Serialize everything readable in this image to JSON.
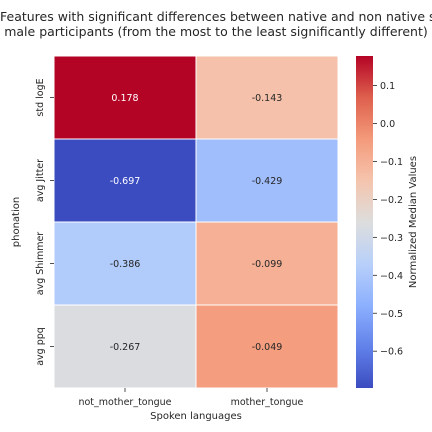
{
  "chart_data": {
    "type": "heatmap",
    "title_lines": [
      "Features with significant differences between native and non native spe",
      "male participants (from the most to the least significantly different)"
    ],
    "xlabel": "Spoken languages",
    "ylabel": "phonation",
    "x_categories": [
      "not_mother_tongue",
      "mother_tongue"
    ],
    "y_categories": [
      "std logE",
      "avg Jitter",
      "avg Shimmer",
      "avg ppq"
    ],
    "values": [
      [
        0.178,
        -0.143
      ],
      [
        -0.697,
        -0.429
      ],
      [
        -0.386,
        -0.099
      ],
      [
        -0.267,
        -0.049
      ]
    ],
    "value_labels": [
      [
        "0.178",
        "-0.143"
      ],
      [
        "-0.697",
        "-0.429"
      ],
      [
        "-0.386",
        "-0.099"
      ],
      [
        "-0.267",
        "-0.049"
      ]
    ],
    "colormap": "coolwarm",
    "colorbar": {
      "label": "Normalized Median Values",
      "range": [
        -0.697,
        0.178
      ],
      "ticks": [
        0.1,
        0.0,
        -0.1,
        -0.2,
        -0.3,
        -0.4,
        -0.5,
        -0.6
      ],
      "tick_labels": [
        "0.1",
        "0.0",
        "−0.1",
        "−0.2",
        "−0.3",
        "−0.4",
        "−0.5",
        "−0.6"
      ]
    },
    "grid": false
  }
}
